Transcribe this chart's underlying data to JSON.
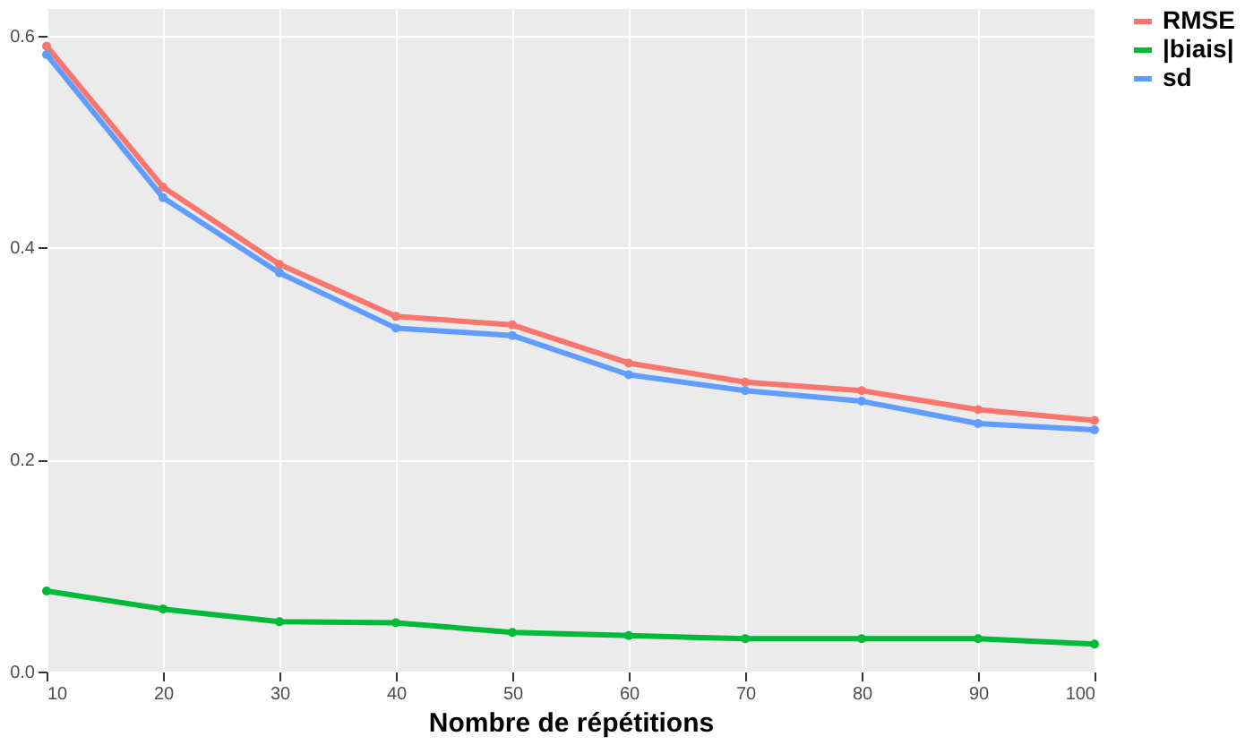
{
  "chart_data": {
    "type": "line",
    "xlabel": "Nombre de répétitions",
    "x": [
      10,
      20,
      30,
      40,
      50,
      60,
      70,
      80,
      90,
      100
    ],
    "series": [
      {
        "name": "RMSE",
        "color": "#f8766d",
        "values": [
          0.59,
          0.457,
          0.384,
          0.335,
          0.327,
          0.291,
          0.273,
          0.265,
          0.247,
          0.237
        ]
      },
      {
        "name": "|biais|",
        "color": "#00ba38",
        "values": [
          0.076,
          0.059,
          0.047,
          0.046,
          0.037,
          0.034,
          0.031,
          0.031,
          0.031,
          0.026
        ]
      },
      {
        "name": "sd",
        "color": "#619cff",
        "values": [
          0.582,
          0.447,
          0.376,
          0.324,
          0.317,
          0.28,
          0.265,
          0.255,
          0.234,
          0.228
        ]
      }
    ],
    "xlim": [
      10,
      100
    ],
    "xticks": [
      10,
      20,
      30,
      40,
      50,
      60,
      70,
      80,
      90,
      100
    ],
    "ylim": [
      0,
      0.625
    ],
    "yticks": [
      {
        "value": 0,
        "label": "0.0"
      },
      {
        "value": 0.2,
        "label": "0.2"
      },
      {
        "value": 0.4,
        "label": "0.4"
      },
      {
        "value": 0.6,
        "label": "0.6"
      }
    ],
    "grid": true,
    "legend": "right",
    "marker": "circle",
    "line_style": "solid"
  }
}
